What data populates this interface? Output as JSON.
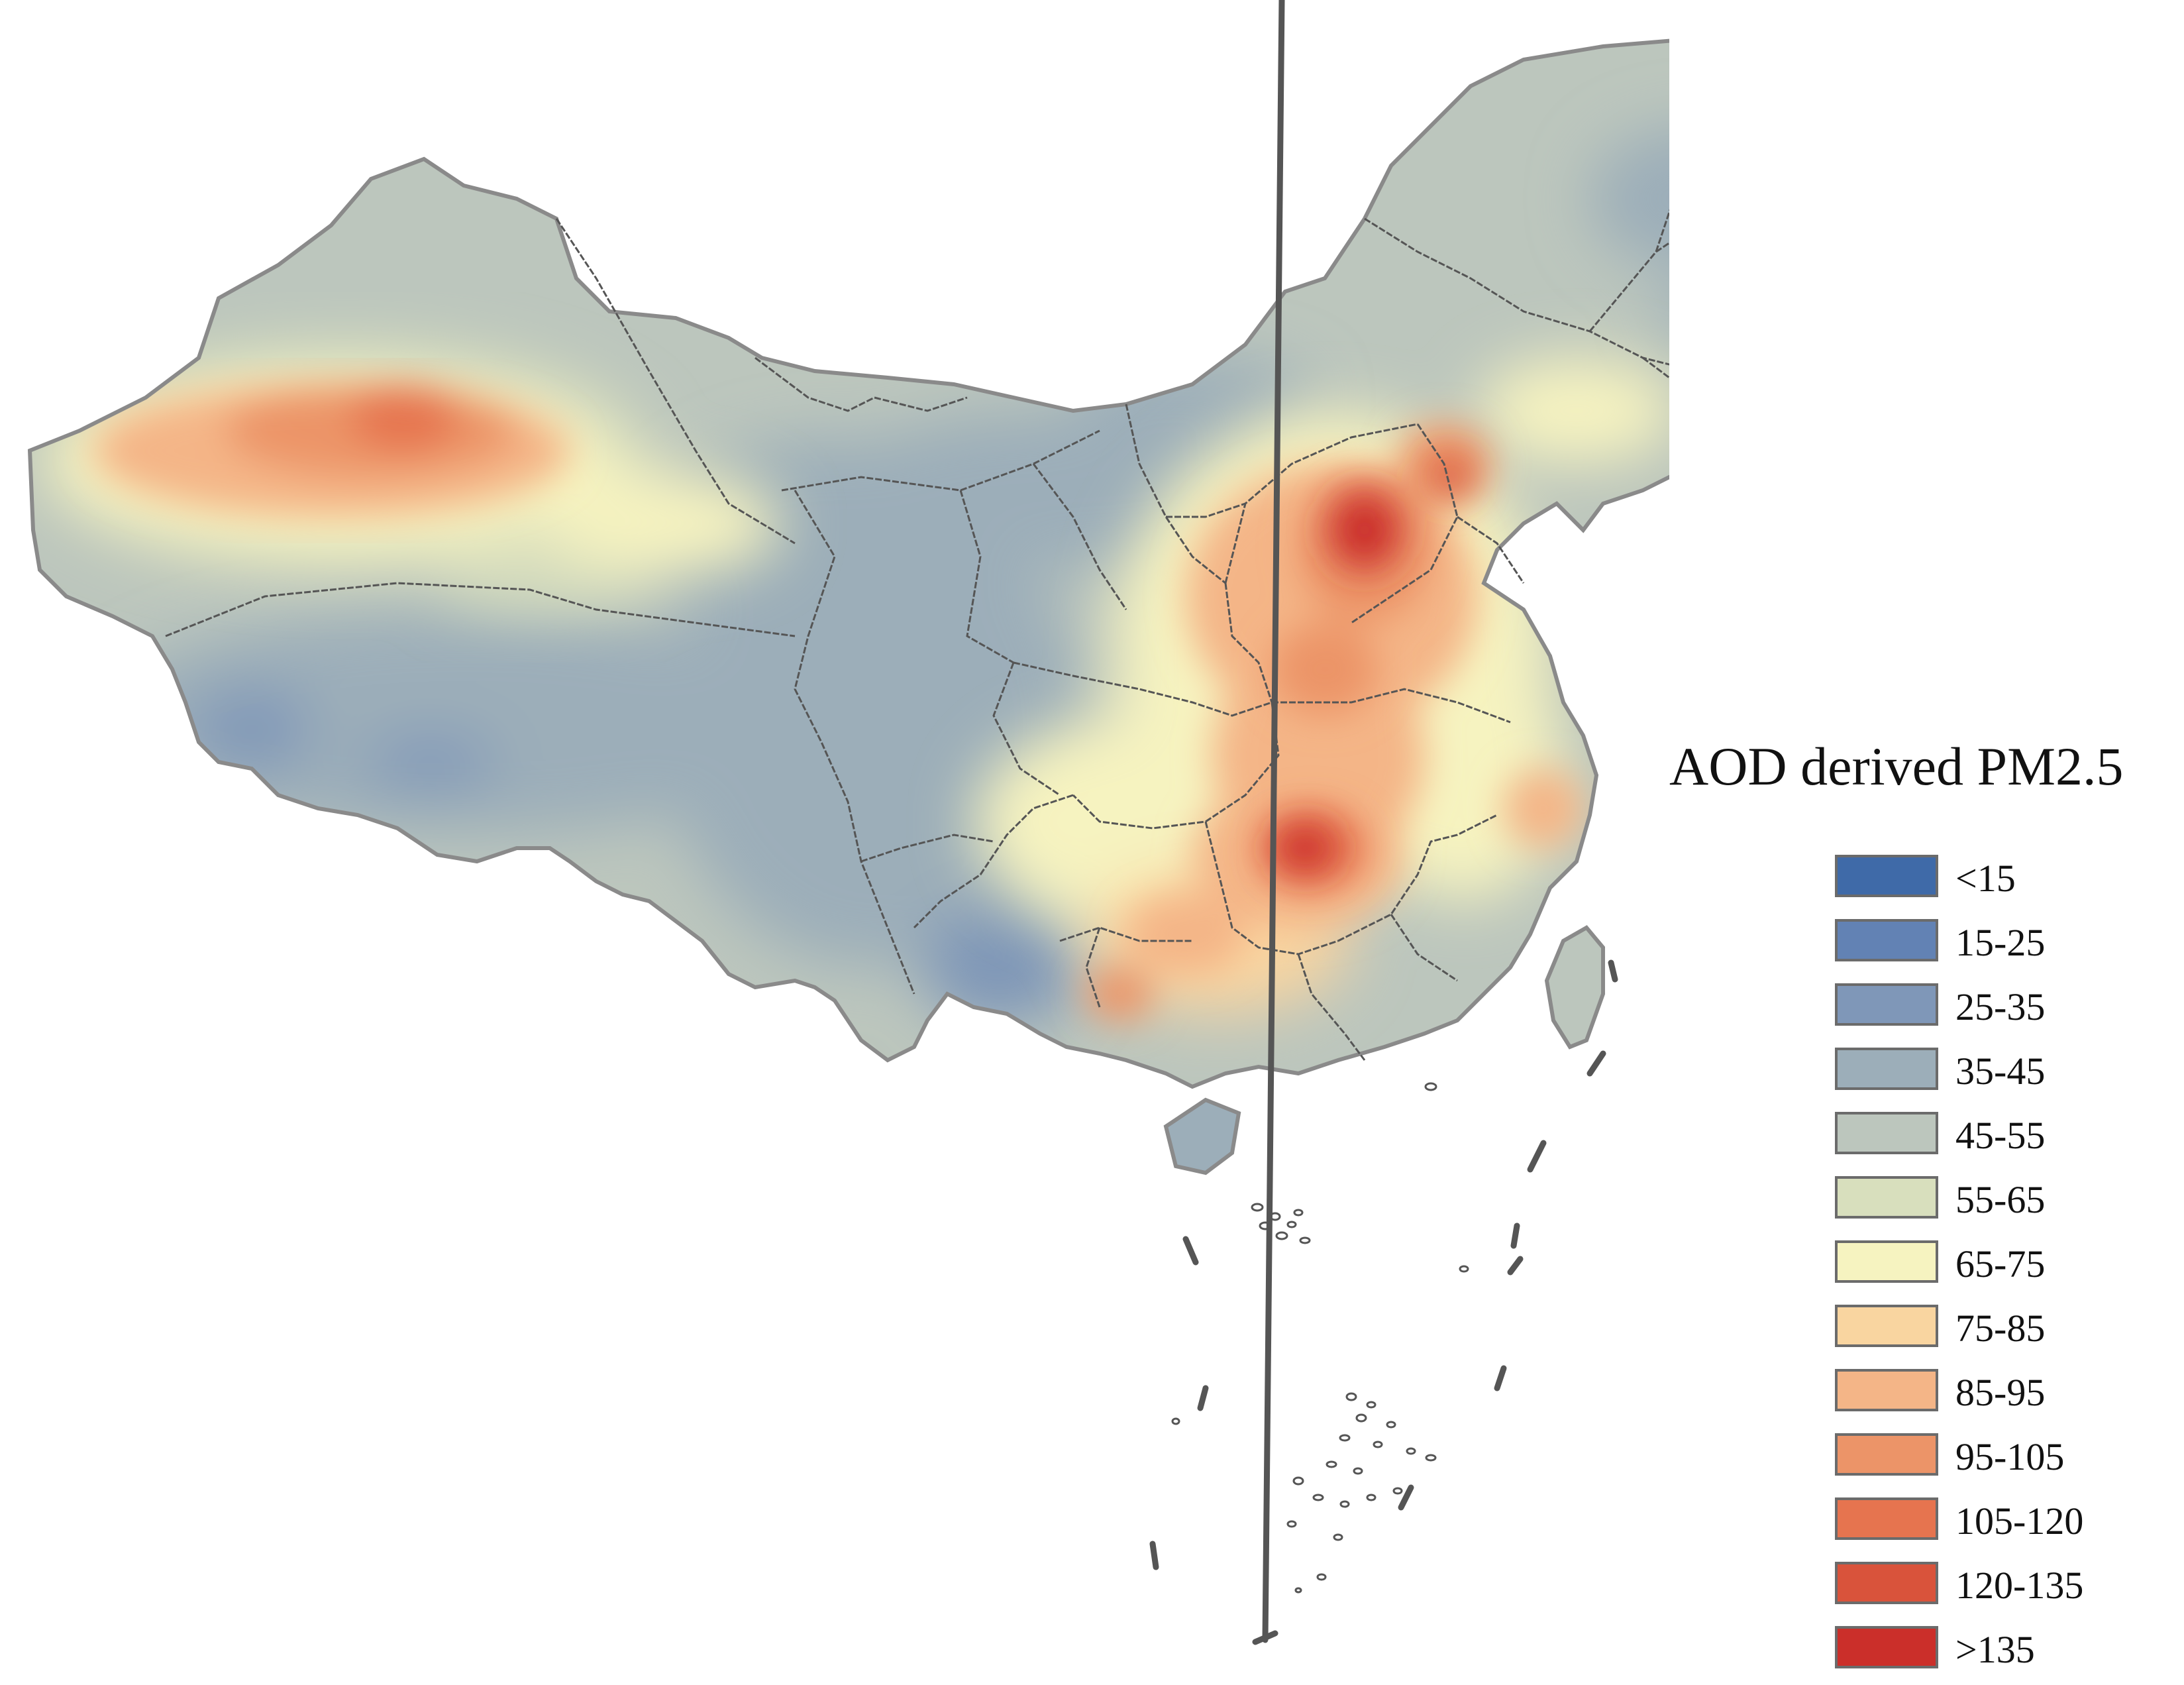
{
  "legend": {
    "title": "AOD derived PM2.5",
    "items": [
      {
        "label": "<15",
        "color": "#3f6aa8"
      },
      {
        "label": "15-25",
        "color": "#6282b4"
      },
      {
        "label": "25-35",
        "color": "#7f97b8"
      },
      {
        "label": "35-45",
        "color": "#9caeb9"
      },
      {
        "label": "45-55",
        "color": "#bcc6bd"
      },
      {
        "label": "55-65",
        "color": "#d8dfbd"
      },
      {
        "label": "65-75",
        "color": "#f6f3c0"
      },
      {
        "label": "75-85",
        "color": "#f9d5a0"
      },
      {
        "label": "85-95",
        "color": "#f4b587"
      },
      {
        "label": "95-105",
        "color": "#ec9468"
      },
      {
        "label": "105-120",
        "color": "#e6744f"
      },
      {
        "label": "120-135",
        "color": "#d9533b"
      },
      {
        "label": ">135",
        "color": "#cb2f2a"
      }
    ]
  },
  "colors": {
    "border": "#555555",
    "outer_border": "#8a8a8a"
  }
}
